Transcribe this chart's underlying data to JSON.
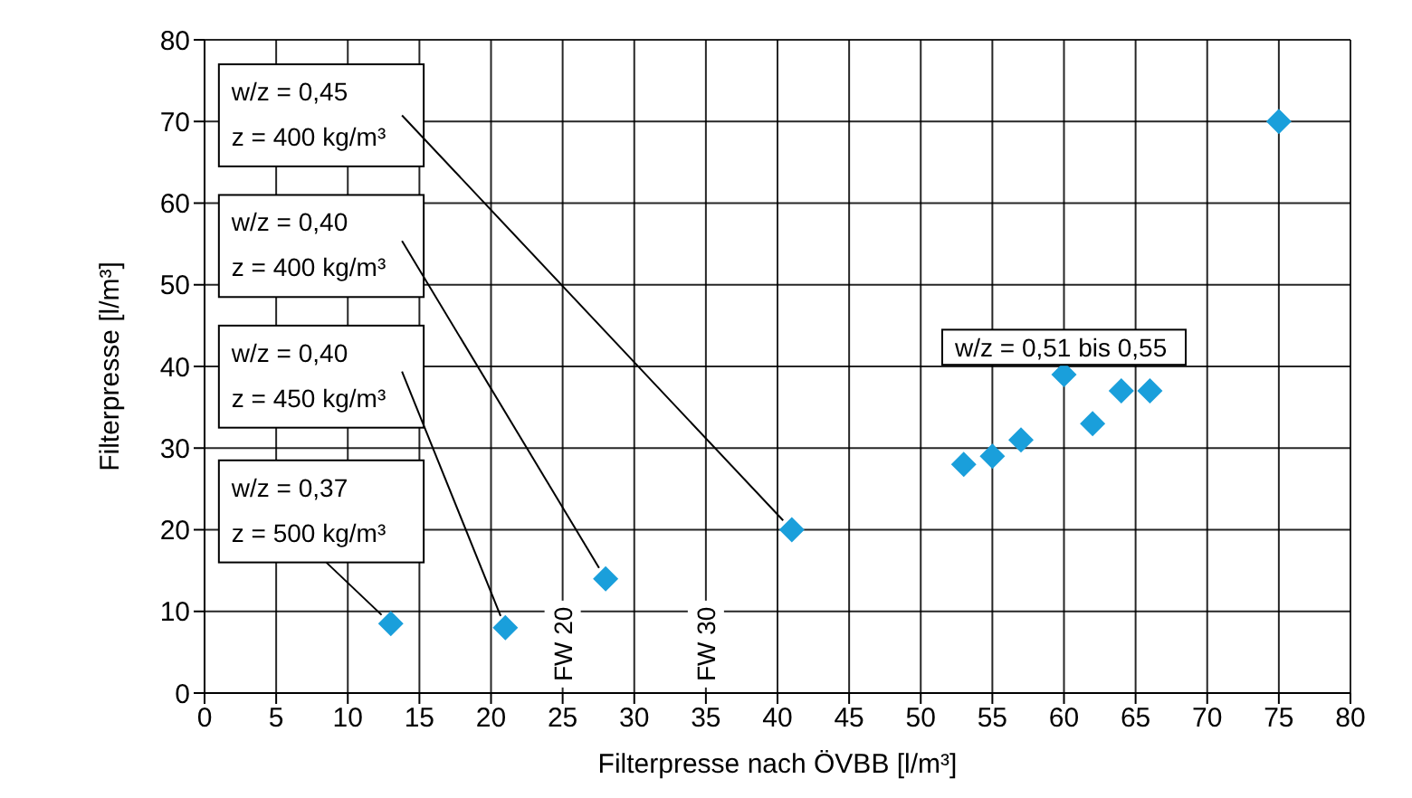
{
  "chart_data": {
    "type": "scatter",
    "xlabel": "Filterpresse nach ÖVBB [l/m³]",
    "ylabel": "Filterpresse [l/m³]",
    "x": [
      13,
      21,
      28,
      41,
      53,
      55,
      57,
      60,
      62,
      64,
      66,
      75
    ],
    "series": [
      {
        "color": "#1a9fdb",
        "values": [
          8.5,
          8,
          14,
          20,
          28,
          29,
          31,
          39,
          33,
          37,
          37,
          70
        ]
      }
    ],
    "xlim": [
      0,
      80
    ],
    "xticks": [
      0,
      5,
      10,
      15,
      20,
      25,
      30,
      35,
      40,
      45,
      50,
      55,
      60,
      65,
      70,
      75,
      80
    ],
    "ylim": [
      0,
      80
    ],
    "yticks": [
      0,
      10,
      20,
      30,
      40,
      50,
      60,
      70,
      80
    ],
    "grid": true,
    "legend": false,
    "marker": "diamond",
    "annotations": [
      {
        "text": "w/z = 0,45\nz = 400 kg/m³",
        "x": 41,
        "y": 20
      },
      {
        "text": "w/z = 0,40\nz = 400 kg/m³",
        "x": 28,
        "y": 14
      },
      {
        "text": "w/z = 0,40\nz = 450 kg/m³",
        "x": 21,
        "y": 8
      },
      {
        "text": "w/z = 0,37\nz = 500 kg/m³",
        "x": 13,
        "y": 8.5
      },
      "w/z = 0,51 bis 0,55",
      "FW 20",
      "FW 30"
    ]
  }
}
